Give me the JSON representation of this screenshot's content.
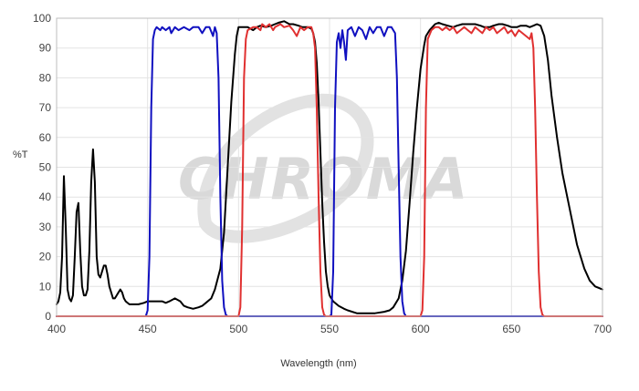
{
  "chart_data": {
    "type": "line",
    "xlabel": "Wavelength (nm)",
    "ylabel": "%T",
    "xlim": [
      400,
      700
    ],
    "ylim": [
      0,
      100
    ],
    "x_ticks": [
      "400",
      "450",
      "500",
      "550",
      "600",
      "650",
      "700"
    ],
    "y_ticks": [
      "0",
      "10",
      "20",
      "30",
      "40",
      "50",
      "60",
      "70",
      "80",
      "90",
      "100"
    ],
    "grid": true,
    "watermark": "CHROMA",
    "series": [
      {
        "color": "#000000",
        "points": [
          [
            400,
            4
          ],
          [
            401,
            5
          ],
          [
            402,
            8
          ],
          [
            403,
            20
          ],
          [
            404,
            47
          ],
          [
            405,
            30
          ],
          [
            406,
            9
          ],
          [
            407,
            6
          ],
          [
            408,
            5
          ],
          [
            409,
            7
          ],
          [
            410,
            20
          ],
          [
            411,
            35
          ],
          [
            412,
            38
          ],
          [
            413,
            22
          ],
          [
            414,
            10
          ],
          [
            415,
            7
          ],
          [
            416,
            7
          ],
          [
            417,
            9
          ],
          [
            418,
            22
          ],
          [
            419,
            45
          ],
          [
            420,
            56
          ],
          [
            421,
            45
          ],
          [
            422,
            20
          ],
          [
            423,
            14
          ],
          [
            424,
            13
          ],
          [
            425,
            15
          ],
          [
            426,
            17
          ],
          [
            427,
            17
          ],
          [
            428,
            14
          ],
          [
            429,
            10
          ],
          [
            430,
            8
          ],
          [
            431,
            6
          ],
          [
            432,
            6
          ],
          [
            433,
            7
          ],
          [
            434,
            8
          ],
          [
            435,
            9
          ],
          [
            436,
            8
          ],
          [
            437,
            6
          ],
          [
            438,
            5
          ],
          [
            440,
            4
          ],
          [
            442,
            4
          ],
          [
            445,
            4
          ],
          [
            448,
            4.5
          ],
          [
            450,
            5
          ],
          [
            452,
            5
          ],
          [
            455,
            5
          ],
          [
            458,
            5
          ],
          [
            460,
            4.5
          ],
          [
            462,
            5
          ],
          [
            465,
            6
          ],
          [
            468,
            5
          ],
          [
            470,
            3.5
          ],
          [
            472,
            3
          ],
          [
            475,
            2.5
          ],
          [
            478,
            3
          ],
          [
            480,
            3.5
          ],
          [
            482,
            4.5
          ],
          [
            485,
            6
          ],
          [
            487,
            9
          ],
          [
            490,
            16
          ],
          [
            492,
            28
          ],
          [
            494,
            50
          ],
          [
            496,
            72
          ],
          [
            498,
            88
          ],
          [
            499,
            94
          ],
          [
            500,
            97
          ],
          [
            502,
            97
          ],
          [
            505,
            97
          ],
          [
            508,
            96
          ],
          [
            510,
            97
          ],
          [
            512,
            97.5
          ],
          [
            515,
            97
          ],
          [
            518,
            97.5
          ],
          [
            520,
            98
          ],
          [
            522,
            98.5
          ],
          [
            525,
            99
          ],
          [
            528,
            98
          ],
          [
            530,
            98
          ],
          [
            533,
            97.5
          ],
          [
            535,
            97
          ],
          [
            538,
            97
          ],
          [
            540,
            96.5
          ],
          [
            541,
            95
          ],
          [
            542,
            92
          ],
          [
            543,
            85
          ],
          [
            544,
            72
          ],
          [
            545,
            55
          ],
          [
            546,
            38
          ],
          [
            547,
            25
          ],
          [
            548,
            15
          ],
          [
            549,
            10
          ],
          [
            550,
            7
          ],
          [
            552,
            5
          ],
          [
            555,
            3.5
          ],
          [
            558,
            2.5
          ],
          [
            560,
            2
          ],
          [
            565,
            1
          ],
          [
            570,
            1
          ],
          [
            575,
            1
          ],
          [
            580,
            1.5
          ],
          [
            583,
            2
          ],
          [
            585,
            3
          ],
          [
            588,
            6
          ],
          [
            590,
            12
          ],
          [
            592,
            22
          ],
          [
            594,
            38
          ],
          [
            596,
            55
          ],
          [
            598,
            70
          ],
          [
            600,
            83
          ],
          [
            602,
            91
          ],
          [
            603,
            94
          ],
          [
            605,
            96
          ],
          [
            608,
            98
          ],
          [
            610,
            98.5
          ],
          [
            612,
            98
          ],
          [
            615,
            97.5
          ],
          [
            618,
            97
          ],
          [
            620,
            97.5
          ],
          [
            623,
            98
          ],
          [
            625,
            98
          ],
          [
            628,
            98
          ],
          [
            630,
            98
          ],
          [
            633,
            97.5
          ],
          [
            635,
            97
          ],
          [
            638,
            97
          ],
          [
            640,
            97.5
          ],
          [
            643,
            98
          ],
          [
            645,
            98
          ],
          [
            648,
            97.5
          ],
          [
            650,
            97
          ],
          [
            653,
            97
          ],
          [
            655,
            97.5
          ],
          [
            658,
            97.5
          ],
          [
            660,
            97
          ],
          [
            662,
            97.5
          ],
          [
            664,
            98
          ],
          [
            666,
            97.5
          ],
          [
            668,
            94
          ],
          [
            670,
            86
          ],
          [
            672,
            74
          ],
          [
            675,
            60
          ],
          [
            678,
            48
          ],
          [
            680,
            42
          ],
          [
            683,
            33
          ],
          [
            686,
            24
          ],
          [
            690,
            16
          ],
          [
            693,
            12
          ],
          [
            696,
            10
          ],
          [
            700,
            9
          ]
        ]
      },
      {
        "color": "#1010c0",
        "points": [
          [
            400,
            0
          ],
          [
            445,
            0
          ],
          [
            449,
            0
          ],
          [
            450,
            2
          ],
          [
            451,
            20
          ],
          [
            452,
            70
          ],
          [
            453,
            93
          ],
          [
            454,
            96
          ],
          [
            455,
            97
          ],
          [
            457,
            96
          ],
          [
            458,
            97
          ],
          [
            460,
            96
          ],
          [
            462,
            97
          ],
          [
            463,
            95
          ],
          [
            465,
            97
          ],
          [
            467,
            96
          ],
          [
            470,
            97
          ],
          [
            473,
            96
          ],
          [
            475,
            97
          ],
          [
            478,
            97
          ],
          [
            480,
            95
          ],
          [
            482,
            97
          ],
          [
            484,
            97
          ],
          [
            486,
            94
          ],
          [
            487,
            97
          ],
          [
            488,
            95
          ],
          [
            489,
            80
          ],
          [
            490,
            40
          ],
          [
            491,
            12
          ],
          [
            492,
            3
          ],
          [
            493,
            0.5
          ],
          [
            494,
            0
          ],
          [
            550,
            0
          ],
          [
            551,
            0.5
          ],
          [
            552,
            15
          ],
          [
            553,
            70
          ],
          [
            554,
            92
          ],
          [
            555,
            95
          ],
          [
            556,
            90
          ],
          [
            557,
            96
          ],
          [
            558,
            92
          ],
          [
            559,
            86
          ],
          [
            560,
            96
          ],
          [
            562,
            97
          ],
          [
            564,
            94
          ],
          [
            566,
            97
          ],
          [
            568,
            96
          ],
          [
            570,
            93
          ],
          [
            572,
            97
          ],
          [
            574,
            95
          ],
          [
            576,
            97
          ],
          [
            578,
            97
          ],
          [
            580,
            94
          ],
          [
            582,
            97
          ],
          [
            584,
            97
          ],
          [
            586,
            95
          ],
          [
            587,
            80
          ],
          [
            588,
            50
          ],
          [
            589,
            20
          ],
          [
            590,
            5
          ],
          [
            591,
            1
          ],
          [
            592,
            0
          ],
          [
            700,
            0
          ]
        ]
      },
      {
        "color": "#e03030",
        "points": [
          [
            400,
            0
          ],
          [
            500,
            0
          ],
          [
            501,
            3
          ],
          [
            502,
            30
          ],
          [
            503,
            80
          ],
          [
            504,
            93
          ],
          [
            505,
            96
          ],
          [
            508,
            97
          ],
          [
            510,
            97
          ],
          [
            512,
            96
          ],
          [
            513,
            98
          ],
          [
            515,
            97
          ],
          [
            517,
            98
          ],
          [
            519,
            96
          ],
          [
            520,
            97
          ],
          [
            523,
            98
          ],
          [
            525,
            97
          ],
          [
            528,
            97.5
          ],
          [
            530,
            96
          ],
          [
            532,
            94
          ],
          [
            534,
            97
          ],
          [
            536,
            96
          ],
          [
            538,
            97
          ],
          [
            540,
            97
          ],
          [
            541,
            95
          ],
          [
            542,
            90
          ],
          [
            543,
            70
          ],
          [
            544,
            40
          ],
          [
            545,
            15
          ],
          [
            546,
            3
          ],
          [
            547,
            0.5
          ],
          [
            548,
            0
          ],
          [
            600,
            0
          ],
          [
            601,
            2
          ],
          [
            602,
            20
          ],
          [
            603,
            70
          ],
          [
            604,
            93
          ],
          [
            606,
            96
          ],
          [
            608,
            97
          ],
          [
            610,
            97
          ],
          [
            612,
            96
          ],
          [
            614,
            97
          ],
          [
            616,
            96
          ],
          [
            618,
            97
          ],
          [
            620,
            95
          ],
          [
            622,
            96
          ],
          [
            624,
            97
          ],
          [
            626,
            96
          ],
          [
            628,
            95
          ],
          [
            630,
            97
          ],
          [
            632,
            96
          ],
          [
            634,
            95
          ],
          [
            636,
            97
          ],
          [
            638,
            96
          ],
          [
            640,
            97
          ],
          [
            642,
            95
          ],
          [
            644,
            96
          ],
          [
            646,
            97
          ],
          [
            648,
            95
          ],
          [
            650,
            96
          ],
          [
            652,
            94
          ],
          [
            654,
            96
          ],
          [
            656,
            95
          ],
          [
            658,
            94
          ],
          [
            660,
            93
          ],
          [
            661,
            95
          ],
          [
            662,
            90
          ],
          [
            663,
            70
          ],
          [
            664,
            40
          ],
          [
            665,
            15
          ],
          [
            666,
            3
          ],
          [
            667,
            0.5
          ],
          [
            668,
            0
          ],
          [
            700,
            0
          ]
        ]
      }
    ]
  }
}
